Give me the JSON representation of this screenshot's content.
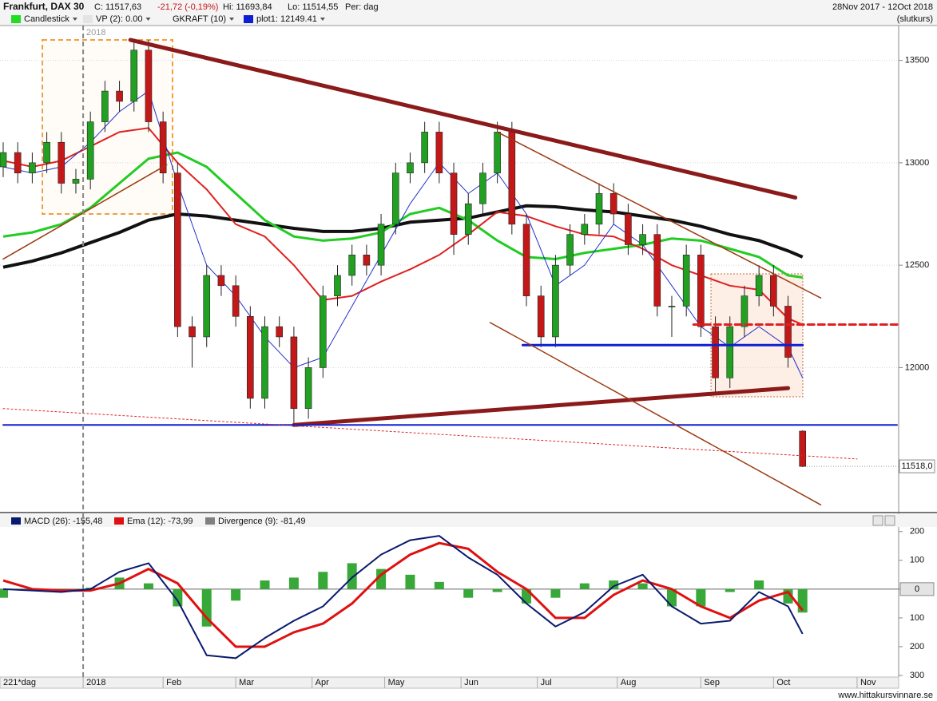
{
  "header": {
    "title": "Frankfurt, DAX 30",
    "close": "C: 11517,63",
    "change": "-21,72 (-0,19%)",
    "high": "Hi: 11693,84",
    "low": "Lo: 11514,55",
    "period": "Per: dag",
    "range": "28Nov 2017 - 12Oct 2018",
    "mode": "(slutkurs)",
    "legend": [
      "Candlestick",
      "VP (2): 0.00",
      "GKRAFT (10)",
      "plot1: 12149.41"
    ],
    "box_label": "2018"
  },
  "footer": {
    "bars": "221*dag",
    "site": "www.hittakursvinnare.se"
  },
  "chart_data": [
    {
      "type": "candlestick",
      "up_color": "#22a022",
      "down_color": "#c41818",
      "grid": true,
      "xlim": [
        0,
        246
      ],
      "ylim": [
        11300,
        13670
      ],
      "yticks": [
        12000,
        12500,
        13000,
        13500
      ],
      "last_price": {
        "value": 11518,
        "label": "11518,0"
      },
      "xticks": [
        {
          "value": 22,
          "label": "2018"
        },
        {
          "value": 44,
          "label": "Feb"
        },
        {
          "value": 64,
          "label": "Mar"
        },
        {
          "value": 85,
          "label": "Apr"
        },
        {
          "value": 105,
          "label": "May"
        },
        {
          "value": 126,
          "label": "Jun"
        },
        {
          "value": 147,
          "label": "Jul"
        },
        {
          "value": 169,
          "label": "Aug"
        },
        {
          "value": 192,
          "label": "Sep"
        },
        {
          "value": 212,
          "label": "Oct"
        },
        {
          "value": 235,
          "label": "Nov"
        }
      ],
      "x": [
        0,
        4,
        8,
        12,
        16,
        20,
        24,
        28,
        32,
        36,
        40,
        44,
        48,
        52,
        56,
        60,
        64,
        68,
        72,
        76,
        80,
        84,
        88,
        92,
        96,
        100,
        104,
        108,
        112,
        116,
        120,
        124,
        128,
        132,
        136,
        140,
        144,
        148,
        152,
        156,
        160,
        164,
        168,
        172,
        176,
        180,
        184,
        188,
        192,
        196,
        200,
        204,
        208,
        212,
        216,
        220
      ],
      "ohlc": [
        [
          12980,
          13100,
          12930,
          13050
        ],
        [
          13050,
          13100,
          12900,
          12950
        ],
        [
          12950,
          13050,
          12900,
          13000
        ],
        [
          13000,
          13150,
          12950,
          13100
        ],
        [
          13100,
          13150,
          12850,
          12900
        ],
        [
          12900,
          12970,
          12850,
          12920
        ],
        [
          12920,
          13250,
          12870,
          13200
        ],
        [
          13200,
          13400,
          13150,
          13350
        ],
        [
          13350,
          13400,
          13250,
          13300
        ],
        [
          13300,
          13600,
          13250,
          13550
        ],
        [
          13550,
          13600,
          13150,
          13200
        ],
        [
          13200,
          13250,
          12900,
          12950
        ],
        [
          12950,
          13000,
          12150,
          12200
        ],
        [
          12200,
          12250,
          12000,
          12150
        ],
        [
          12150,
          12500,
          12100,
          12450
        ],
        [
          12450,
          12500,
          12350,
          12400
        ],
        [
          12400,
          12450,
          12200,
          12250
        ],
        [
          12250,
          12300,
          11800,
          11850
        ],
        [
          11850,
          12250,
          11800,
          12200
        ],
        [
          12200,
          12250,
          12100,
          12150
        ],
        [
          12150,
          12200,
          11730,
          11800
        ],
        [
          11800,
          12050,
          11750,
          12000
        ],
        [
          12000,
          12400,
          11950,
          12350
        ],
        [
          12350,
          12500,
          12300,
          12450
        ],
        [
          12450,
          12600,
          12400,
          12550
        ],
        [
          12550,
          12600,
          12450,
          12500
        ],
        [
          12500,
          12750,
          12450,
          12700
        ],
        [
          12700,
          13000,
          12650,
          12950
        ],
        [
          12950,
          13050,
          12900,
          13000
        ],
        [
          13000,
          13200,
          12950,
          13150
        ],
        [
          13150,
          13200,
          12900,
          12950
        ],
        [
          12950,
          13000,
          12550,
          12650
        ],
        [
          12650,
          12850,
          12600,
          12800
        ],
        [
          12800,
          13000,
          12750,
          12950
        ],
        [
          12950,
          13200,
          12900,
          13150
        ],
        [
          13150,
          13200,
          12650,
          12700
        ],
        [
          12700,
          12750,
          12300,
          12350
        ],
        [
          12350,
          12400,
          12100,
          12150
        ],
        [
          12150,
          12550,
          12100,
          12500
        ],
        [
          12500,
          12700,
          12450,
          12650
        ],
        [
          12650,
          12750,
          12600,
          12700
        ],
        [
          12700,
          12900,
          12650,
          12850
        ],
        [
          12850,
          12900,
          12700,
          12750
        ],
        [
          12750,
          12800,
          12550,
          12600
        ],
        [
          12600,
          12700,
          12550,
          12650
        ],
        [
          12650,
          12700,
          12250,
          12300
        ],
        [
          12300,
          12350,
          12150,
          12300
        ],
        [
          12300,
          12600,
          12250,
          12550
        ],
        [
          12550,
          12600,
          12150,
          12200
        ],
        [
          12200,
          12250,
          11880,
          11950
        ],
        [
          11950,
          12250,
          11900,
          12200
        ],
        [
          12200,
          12400,
          12150,
          12350
        ],
        [
          12350,
          12500,
          12300,
          12450
        ],
        [
          12450,
          12500,
          12250,
          12300
        ],
        [
          12300,
          12350,
          12000,
          12050
        ],
        [
          11690,
          11693.84,
          11514.55,
          11517.63
        ]
      ],
      "overlay_x": [
        0,
        8,
        16,
        24,
        32,
        40,
        48,
        56,
        64,
        72,
        80,
        88,
        96,
        104,
        112,
        120,
        128,
        136,
        144,
        152,
        160,
        168,
        176,
        184,
        192,
        200,
        208,
        216,
        220
      ],
      "overlays": [
        {
          "color": "#111111",
          "width": 4,
          "values": [
            12490,
            12520,
            12560,
            12610,
            12660,
            12720,
            12750,
            12740,
            12720,
            12700,
            12680,
            12665,
            12665,
            12680,
            12710,
            12720,
            12730,
            12760,
            12790,
            12785,
            12770,
            12760,
            12740,
            12720,
            12690,
            12650,
            12620,
            12570,
            12540
          ]
        },
        {
          "color": "#22cc22",
          "width": 3,
          "values": [
            12640,
            12660,
            12700,
            12780,
            12900,
            13020,
            13050,
            12980,
            12850,
            12720,
            12640,
            12620,
            12630,
            12660,
            12750,
            12780,
            12720,
            12620,
            12540,
            12530,
            12560,
            12580,
            12600,
            12630,
            12620,
            12580,
            12540,
            12450,
            12440
          ]
        },
        {
          "color": "#e02020",
          "width": 2,
          "values": [
            13010,
            12980,
            13010,
            13080,
            13150,
            13170,
            13000,
            12870,
            12700,
            12640,
            12500,
            12330,
            12350,
            12420,
            12480,
            12550,
            12650,
            12760,
            12740,
            12690,
            12650,
            12640,
            12580,
            12500,
            12450,
            12400,
            12380,
            12240,
            12210
          ]
        },
        {
          "color": "#2233cc",
          "width": 1,
          "values": [
            12980,
            12950,
            12980,
            13100,
            13250,
            13350,
            12900,
            12500,
            12350,
            12150,
            12000,
            12050,
            12300,
            12550,
            12800,
            13000,
            12850,
            12950,
            12750,
            12400,
            12500,
            12700,
            12600,
            12400,
            12200,
            12100,
            12200,
            12100,
            11950
          ]
        }
      ],
      "trendlines": [
        {
          "color": "#8b1a1a",
          "width": 5,
          "dash": "",
          "points": [
            [
              35,
              13600
            ],
            [
              218,
              12830
            ]
          ]
        },
        {
          "color": "#8b1a1a",
          "width": 5,
          "dash": "",
          "points": [
            [
              80,
              11720
            ],
            [
              216,
              11900
            ]
          ]
        },
        {
          "color": "#1020d0",
          "width": 2,
          "dash": "",
          "points": [
            [
              0,
              11720
            ],
            [
              246,
              11720
            ]
          ]
        },
        {
          "color": "#1020d0",
          "width": 3,
          "dash": "",
          "points": [
            [
              143,
              12110
            ],
            [
              220,
              12110
            ]
          ]
        },
        {
          "color": "#e02020",
          "width": 3,
          "dash": "8,5",
          "points": [
            [
              190,
              12210
            ],
            [
              246,
              12210
            ]
          ]
        },
        {
          "color": "#9a3a10",
          "width": 1.5,
          "dash": "",
          "points": [
            [
              134,
              12220
            ],
            [
              225,
              11330
            ]
          ]
        },
        {
          "color": "#9a3a10",
          "width": 1.5,
          "dash": "",
          "points": [
            [
              136,
              13150
            ],
            [
              225,
              12340
            ]
          ]
        },
        {
          "color": "#9a3a10",
          "width": 1.5,
          "dash": "",
          "points": [
            [
              0,
              12530
            ],
            [
              45,
              12990
            ]
          ]
        },
        {
          "color": "#e02020",
          "width": 1,
          "dash": "2,3",
          "points": [
            [
              0,
              11800
            ],
            [
              235,
              11554
            ]
          ]
        }
      ]
    },
    {
      "type": "macd",
      "ylim": [
        -300,
        216
      ],
      "yticks": [
        200,
        100,
        0,
        {
          "value": -100,
          "label": "100"
        },
        {
          "value": -200,
          "label": "200"
        },
        {
          "value": -300,
          "label": "300"
        }
      ],
      "x": [
        0,
        8,
        16,
        24,
        32,
        40,
        48,
        56,
        64,
        72,
        80,
        88,
        96,
        104,
        112,
        120,
        128,
        136,
        144,
        152,
        160,
        168,
        176,
        184,
        192,
        200,
        208,
        216,
        220
      ],
      "series": [
        {
          "name": "MACD (26): -155,48",
          "color": "#0a1a6e",
          "values": [
            0,
            -5,
            -10,
            0,
            60,
            90,
            -40,
            -230,
            -240,
            -170,
            -110,
            -60,
            40,
            120,
            170,
            185,
            110,
            50,
            -50,
            -130,
            -80,
            10,
            50,
            -60,
            -120,
            -110,
            -10,
            -60,
            -155.48
          ]
        },
        {
          "name": "Ema (12): -73,99",
          "color": "#e01010",
          "values": [
            30,
            0,
            -5,
            -5,
            20,
            70,
            20,
            -100,
            -200,
            -200,
            -150,
            -120,
            -50,
            50,
            120,
            160,
            140,
            60,
            0,
            -100,
            -100,
            -20,
            30,
            0,
            -60,
            -100,
            -40,
            -10,
            -73.99
          ]
        },
        {
          "name": "Divergence (9): -81,49",
          "color": "#808080",
          "bar_color": "#38a838",
          "values": [
            -30,
            -5,
            -5,
            5,
            40,
            20,
            -60,
            -130,
            -40,
            30,
            40,
            60,
            90,
            70,
            50,
            25,
            -30,
            -10,
            -50,
            -30,
            20,
            30,
            20,
            -60,
            -60,
            -10,
            30,
            -50,
            -81.49
          ]
        }
      ]
    }
  ]
}
